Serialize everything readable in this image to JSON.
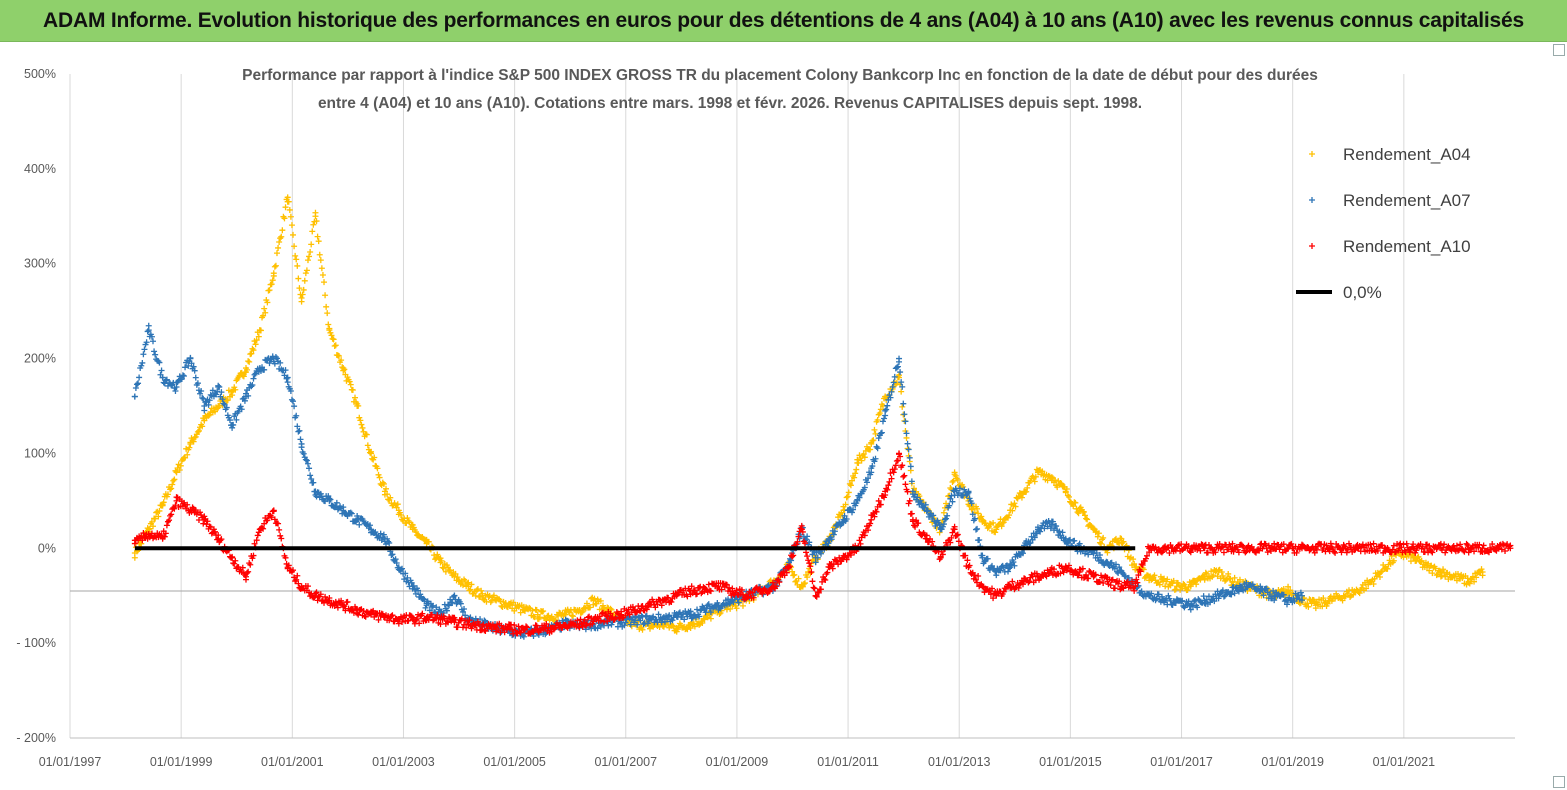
{
  "header": {
    "title": "ADAM Informe. Evolution historique des performances en euros pour des détentions de 4 ans (A04) à 10 ans (A10) avec les revenus connus capitalisés"
  },
  "chart_data": {
    "type": "scatter",
    "title_lines": [
      "Performance par rapport à l'indice S&P 500 INDEX GROSS TR  du placement Colony Bankcorp Inc en fonction de la date de début pour des durées",
      "entre 4 (A04) et 10 ans (A10). Cotations entre mars. 1998 et févr. 2026. Revenus CAPITALISES depuis sept. 1998."
    ],
    "xlabel": "",
    "ylabel": "",
    "x_ticks": [
      "01/01/1997",
      "01/01/1999",
      "01/01/2001",
      "01/01/2003",
      "01/01/2005",
      "01/01/2007",
      "01/01/2009",
      "01/01/2011",
      "01/01/2013",
      "01/01/2015",
      "01/01/2017",
      "01/01/2019",
      "01/01/2021"
    ],
    "xlim": [
      "1997-01-01",
      "2023-01-01"
    ],
    "y_ticks": [
      "500%",
      "400%",
      "300%",
      "200%",
      "100%",
      "0%",
      "- 100%",
      "- 200%"
    ],
    "ylim": [
      -200,
      500
    ],
    "grid": "vertical",
    "legend_position": "top-right",
    "series": [
      {
        "name": "Rendement_A04",
        "color": "#ffc000",
        "marker": "+",
        "x": [
          "1998-03",
          "1998-06",
          "1998-09",
          "1998-12",
          "1999-03",
          "1999-06",
          "1999-09",
          "1999-12",
          "2000-03",
          "2000-06",
          "2000-09",
          "2000-12",
          "2001-03",
          "2001-06",
          "2001-09",
          "2001-12",
          "2002-03",
          "2002-06",
          "2002-09",
          "2002-12",
          "2003-03",
          "2003-06",
          "2003-09",
          "2003-12",
          "2004-03",
          "2004-06",
          "2004-09",
          "2004-12",
          "2005-03",
          "2005-06",
          "2005-09",
          "2005-12",
          "2006-03",
          "2006-06",
          "2006-09",
          "2006-12",
          "2007-03",
          "2007-06",
          "2007-09",
          "2007-12",
          "2008-03",
          "2008-06",
          "2008-09",
          "2008-12",
          "2009-03",
          "2009-06",
          "2009-09",
          "2009-12",
          "2010-03",
          "2010-06",
          "2010-09",
          "2010-12",
          "2011-03",
          "2011-06",
          "2011-09",
          "2011-12",
          "2012-03",
          "2012-06",
          "2012-09",
          "2012-12",
          "2013-03",
          "2013-06",
          "2013-09",
          "2013-12",
          "2014-03",
          "2014-06",
          "2014-09",
          "2014-12",
          "2015-03",
          "2015-06",
          "2015-09",
          "2015-12",
          "2016-03",
          "2016-06",
          "2016-09",
          "2016-12",
          "2017-03",
          "2017-06",
          "2017-09",
          "2017-12",
          "2018-03",
          "2018-06",
          "2018-09",
          "2018-12",
          "2019-03",
          "2019-06",
          "2019-09",
          "2019-12",
          "2020-03",
          "2020-06",
          "2020-09",
          "2020-12",
          "2021-03",
          "2021-06",
          "2021-09",
          "2021-12",
          "2022-03",
          "2022-06"
        ],
        "y": [
          -5,
          20,
          45,
          80,
          110,
          135,
          150,
          165,
          190,
          230,
          290,
          370,
          260,
          350,
          230,
          190,
          150,
          100,
          60,
          40,
          20,
          5,
          -15,
          -30,
          -40,
          -50,
          -55,
          -60,
          -65,
          -70,
          -72,
          -70,
          -65,
          -55,
          -65,
          -75,
          -80,
          -82,
          -80,
          -84,
          -80,
          -75,
          -65,
          -60,
          -55,
          -45,
          -35,
          -20,
          -40,
          -10,
          10,
          40,
          90,
          110,
          160,
          180,
          60,
          40,
          20,
          80,
          50,
          30,
          20,
          40,
          60,
          80,
          75,
          60,
          40,
          20,
          0,
          10,
          -20,
          -30,
          -35,
          -40,
          -40,
          -30,
          -25,
          -35,
          -40,
          -45,
          -50,
          -45,
          -55,
          -60,
          -55,
          -50,
          -45,
          -35,
          -20,
          -5,
          -10,
          -20,
          -25,
          -30,
          -35,
          -25
        ]
      },
      {
        "name": "Rendement_A07",
        "color": "#2e75b6",
        "marker": "+",
        "x": [
          "1998-03",
          "1998-06",
          "1998-09",
          "1998-12",
          "1999-03",
          "1999-06",
          "1999-09",
          "1999-12",
          "2000-03",
          "2000-06",
          "2000-09",
          "2000-12",
          "2001-03",
          "2001-06",
          "2001-09",
          "2001-12",
          "2002-03",
          "2002-06",
          "2002-09",
          "2002-12",
          "2003-03",
          "2003-06",
          "2003-09",
          "2003-12",
          "2004-03",
          "2004-06",
          "2004-09",
          "2004-12",
          "2005-03",
          "2005-06",
          "2005-09",
          "2005-12",
          "2006-03",
          "2006-06",
          "2006-09",
          "2006-12",
          "2007-03",
          "2007-06",
          "2007-09",
          "2007-12",
          "2008-03",
          "2008-06",
          "2008-09",
          "2008-12",
          "2009-03",
          "2009-06",
          "2009-09",
          "2009-12",
          "2010-03",
          "2010-06",
          "2010-09",
          "2010-12",
          "2011-03",
          "2011-06",
          "2011-09",
          "2011-12",
          "2012-03",
          "2012-06",
          "2012-09",
          "2012-12",
          "2013-03",
          "2013-06",
          "2013-09",
          "2013-12",
          "2014-03",
          "2014-06",
          "2014-09",
          "2014-12",
          "2015-03",
          "2015-06",
          "2015-09",
          "2015-12",
          "2016-03",
          "2016-06",
          "2016-09",
          "2016-12",
          "2017-03",
          "2017-06",
          "2017-09",
          "2017-12",
          "2018-03",
          "2018-06",
          "2018-09",
          "2018-12",
          "2019-03"
        ],
        "y": [
          160,
          230,
          180,
          170,
          200,
          150,
          170,
          130,
          160,
          190,
          200,
          180,
          110,
          60,
          50,
          40,
          30,
          20,
          10,
          -20,
          -40,
          -60,
          -70,
          -50,
          -75,
          -80,
          -85,
          -88,
          -90,
          -88,
          -85,
          -80,
          -82,
          -80,
          -78,
          -78,
          -76,
          -75,
          -74,
          -72,
          -70,
          -65,
          -60,
          -55,
          -50,
          -45,
          -40,
          -20,
          20,
          -10,
          10,
          30,
          50,
          80,
          140,
          200,
          60,
          40,
          20,
          60,
          60,
          -10,
          -25,
          -20,
          0,
          20,
          25,
          10,
          0,
          -5,
          -15,
          -25,
          -40,
          -50,
          -55,
          -55,
          -60,
          -55,
          -50,
          -45,
          -40,
          -45,
          -50,
          -55,
          -50
        ]
      },
      {
        "name": "Rendement_A10",
        "color": "#ff0000",
        "marker": "+",
        "x": [
          "1998-03",
          "1998-06",
          "1998-09",
          "1998-12",
          "1999-03",
          "1999-06",
          "1999-09",
          "1999-12",
          "2000-03",
          "2000-06",
          "2000-09",
          "2000-12",
          "2001-03",
          "2001-06",
          "2001-09",
          "2001-12",
          "2002-03",
          "2002-06",
          "2002-09",
          "2002-12",
          "2003-03",
          "2003-06",
          "2003-09",
          "2003-12",
          "2004-03",
          "2004-06",
          "2004-09",
          "2004-12",
          "2005-03",
          "2005-06",
          "2005-09",
          "2005-12",
          "2006-03",
          "2006-06",
          "2006-09",
          "2006-12",
          "2007-03",
          "2007-06",
          "2007-09",
          "2007-12",
          "2008-03",
          "2008-06",
          "2008-09",
          "2008-12",
          "2009-03",
          "2009-06",
          "2009-09",
          "2009-12",
          "2010-03",
          "2010-06",
          "2010-09",
          "2010-12",
          "2011-03",
          "2011-06",
          "2011-09",
          "2011-12",
          "2012-03",
          "2012-06",
          "2012-09",
          "2012-12",
          "2013-03",
          "2013-06",
          "2013-09",
          "2013-12",
          "2014-03",
          "2014-06",
          "2014-09",
          "2014-12",
          "2015-03",
          "2015-06",
          "2015-09",
          "2015-12",
          "2016-03",
          "2016-06",
          "2016-09",
          "2016-12",
          "2017-03",
          "2017-06",
          "2017-09",
          "2017-12",
          "2018-03",
          "2018-06",
          "2018-09",
          "2018-12",
          "2019-03",
          "2019-06",
          "2019-09",
          "2019-12",
          "2020-03",
          "2020-06",
          "2020-09",
          "2020-12",
          "2021-03",
          "2021-06",
          "2021-09",
          "2021-12",
          "2022-03",
          "2022-06",
          "2022-09",
          "2022-12"
        ],
        "y": [
          5,
          15,
          10,
          50,
          40,
          30,
          10,
          -10,
          -30,
          20,
          40,
          -20,
          -40,
          -50,
          -55,
          -60,
          -65,
          -70,
          -72,
          -75,
          -75,
          -73,
          -75,
          -78,
          -80,
          -82,
          -84,
          -85,
          -86,
          -85,
          -84,
          -82,
          -80,
          -75,
          -72,
          -70,
          -65,
          -60,
          -55,
          -50,
          -45,
          -42,
          -40,
          -45,
          -50,
          -45,
          -40,
          -20,
          20,
          -50,
          -20,
          -10,
          0,
          30,
          60,
          100,
          30,
          10,
          -10,
          20,
          -20,
          -40,
          -50,
          -40,
          -35,
          -30,
          -25,
          -20,
          -25,
          -30,
          -35,
          -40,
          -40,
          0,
          0,
          0,
          0,
          0,
          0,
          0,
          0,
          0,
          0,
          0,
          0,
          0,
          0,
          0,
          0,
          0,
          0,
          0,
          0,
          0,
          0,
          0,
          0,
          0,
          0,
          0
        ]
      },
      {
        "name": "0,0%",
        "color": "#000000",
        "marker": "line",
        "x": [
          "1998-03",
          "2016-03"
        ],
        "y": [
          0,
          0
        ]
      }
    ]
  }
}
